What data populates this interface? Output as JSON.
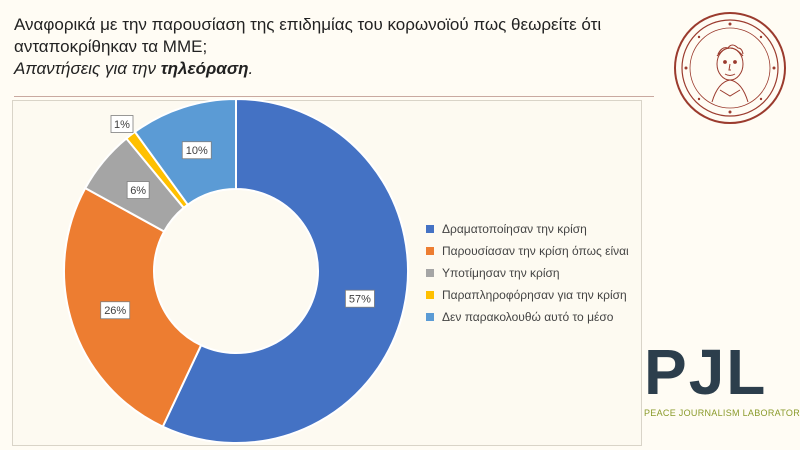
{
  "header": {
    "title_line1": "Αναφορικά με την παρουσίαση της επιδημίας του κορωνοϊού πως θεωρείτε ότι",
    "title_line2": "ανταποκρίθηκαν τα ΜΜΕ;",
    "subtitle_prefix": "Απαντήσεις για την ",
    "subtitle_emph": "τηλεόραση",
    "subtitle_suffix": "."
  },
  "logos": {
    "pjl_mark": "PJL",
    "pjl_name": "PEACE JOURNALISM LABORATORY",
    "seal_icon": "university-seal-icon"
  },
  "chart_data": {
    "type": "pie",
    "donut": true,
    "categories": [
      "Δραματοποίησαν την κρίση",
      "Παρουσίασαν την κρίση όπως είναι",
      "Υποτίμησαν την κρίση",
      "Παραπληροφόρησαν για την κρίση",
      "Δεν παρακολουθώ αυτό το μέσο"
    ],
    "values": [
      57,
      26,
      6,
      1,
      10
    ],
    "data_labels": [
      "57%",
      "26%",
      "6%",
      "1%",
      "10%"
    ],
    "colors": [
      "#4472c4",
      "#ed7d31",
      "#a5a5a5",
      "#ffc000",
      "#5b9bd5"
    ],
    "legend_position": "right"
  }
}
